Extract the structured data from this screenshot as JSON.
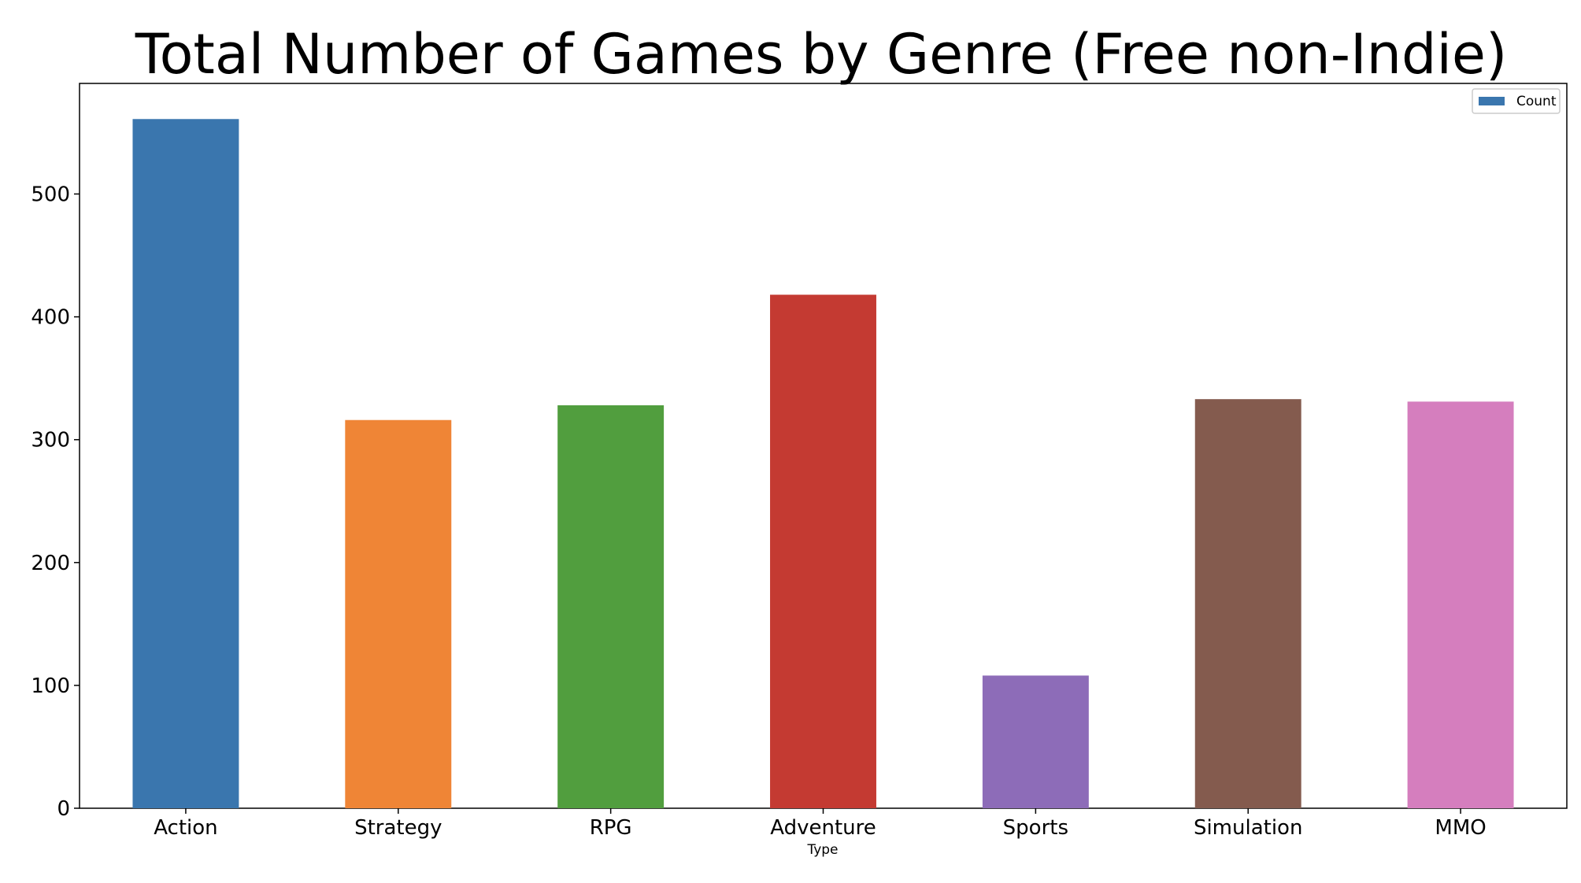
{
  "chart_data": {
    "type": "bar",
    "title": "Total Number of Games by Genre (Free non-Indie)",
    "xlabel": "Type",
    "ylabel": "",
    "categories": [
      "Action",
      "Strategy",
      "RPG",
      "Adventure",
      "Sports",
      "Simulation",
      "MMO"
    ],
    "series": [
      {
        "name": "Count",
        "values": [
          561,
          316,
          328,
          418,
          108,
          333,
          331
        ]
      }
    ],
    "bar_colors": [
      "#3a76ae",
      "#ef8536",
      "#519e3e",
      "#c43a32",
      "#8d6cb8",
      "#845b4e",
      "#d57ebe"
    ],
    "legend_swatch_color": "#3a76ae",
    "ylim": [
      0,
      590
    ],
    "yticks": [
      0,
      100,
      200,
      300,
      400,
      500
    ],
    "grid": false,
    "legend_position": "top-right"
  }
}
